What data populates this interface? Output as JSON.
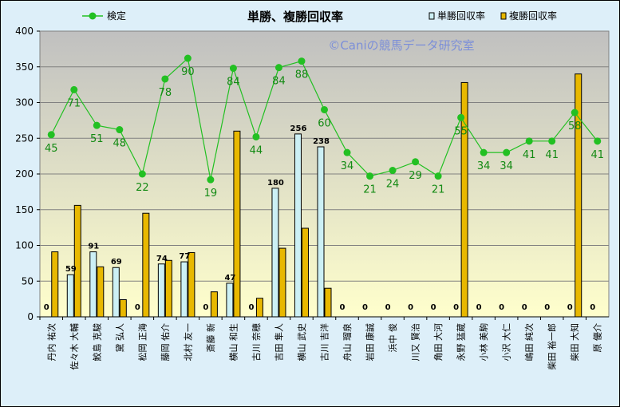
{
  "chart_data": {
    "type": "bar",
    "title": "単勝、複勝回収率",
    "watermark": "©Caniの競馬データ研究室",
    "ylim": [
      0,
      400
    ],
    "yticks": [
      "0",
      "50",
      "100",
      "150",
      "200",
      "250",
      "300",
      "350",
      "400"
    ],
    "categories": [
      "丹内 祐次",
      "佐々木 大輔",
      "鮫島 克駿",
      "黛 弘人",
      "松岡 正海",
      "藤岡 佑介",
      "北村 友一",
      "斎藤 新",
      "横山 和生",
      "古川 奈穂",
      "吉田 隼人",
      "横山 武史",
      "古川 吉洋",
      "舟山 瑠泉",
      "岩田 康誠",
      "浜中 俊",
      "川又 賢治",
      "角田 大河",
      "永野 猛蔵",
      "小林 美駒",
      "小沢 大仁",
      "嶋田 純次",
      "柴田 裕一郎",
      "柴田 大知",
      "原 優介"
    ],
    "series": [
      {
        "name": "単勝回収率",
        "color": "#CCF0F5",
        "values": [
          0,
          59,
          91,
          69,
          0,
          74,
          77,
          0,
          47,
          0,
          180,
          256,
          238,
          0,
          0,
          0,
          0,
          0,
          0,
          0,
          0,
          0,
          0,
          0,
          0
        ]
      },
      {
        "name": "複勝回収率",
        "color": "#E8B800",
        "values": [
          91,
          156,
          70,
          24,
          145,
          79,
          90,
          35,
          260,
          26,
          96,
          124,
          40,
          0,
          0,
          0,
          0,
          0,
          328,
          0,
          0,
          0,
          0,
          340,
          0
        ]
      }
    ],
    "line": {
      "name": "検定",
      "color": "#22C022",
      "values": [
        255,
        318,
        268,
        262,
        200,
        333,
        362,
        192,
        348,
        252,
        349,
        358,
        290,
        230,
        197,
        205,
        217,
        197,
        279,
        230,
        230,
        246,
        246,
        286,
        246
      ]
    },
    "win_labels": [
      "0",
      "59",
      "91",
      "69",
      "0",
      "74",
      "77",
      "0",
      "47",
      "0",
      "180",
      "256",
      "238",
      "0",
      "0",
      "0",
      "0",
      "0",
      "0",
      "0",
      "0",
      "0",
      "0",
      "0",
      "0"
    ],
    "test_labels": [
      "45",
      "71",
      "51",
      "48",
      "22",
      "78",
      "90",
      "19",
      "84",
      "44",
      "84",
      "88",
      "60",
      "34",
      "21",
      "24",
      "29",
      "21",
      "55",
      "34",
      "34",
      "41",
      "41",
      "58",
      "41"
    ]
  }
}
